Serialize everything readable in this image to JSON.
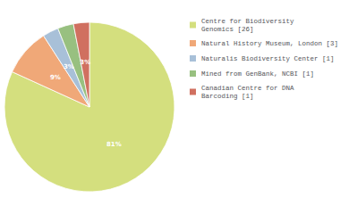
{
  "chart_data": {
    "type": "pie",
    "labels": [
      "Centre for Biodiversity\nGenomics [26]",
      "Natural History Museum, London [3]",
      "Naturalis Biodiversity Center [1]",
      "Mined from GenBank, NCBI [1]",
      "Canadian Centre for DNA\nBarcoding [1]"
    ],
    "values": [
      81,
      9,
      3,
      3,
      3
    ],
    "value_labels": [
      "81%",
      "9%",
      "3%",
      "3%",
      "3%"
    ],
    "colors": [
      "#d4df7e",
      "#f0a878",
      "#a8c0d8",
      "#98c080",
      "#d07060"
    ],
    "data_labels": true,
    "legend": "upper right"
  }
}
